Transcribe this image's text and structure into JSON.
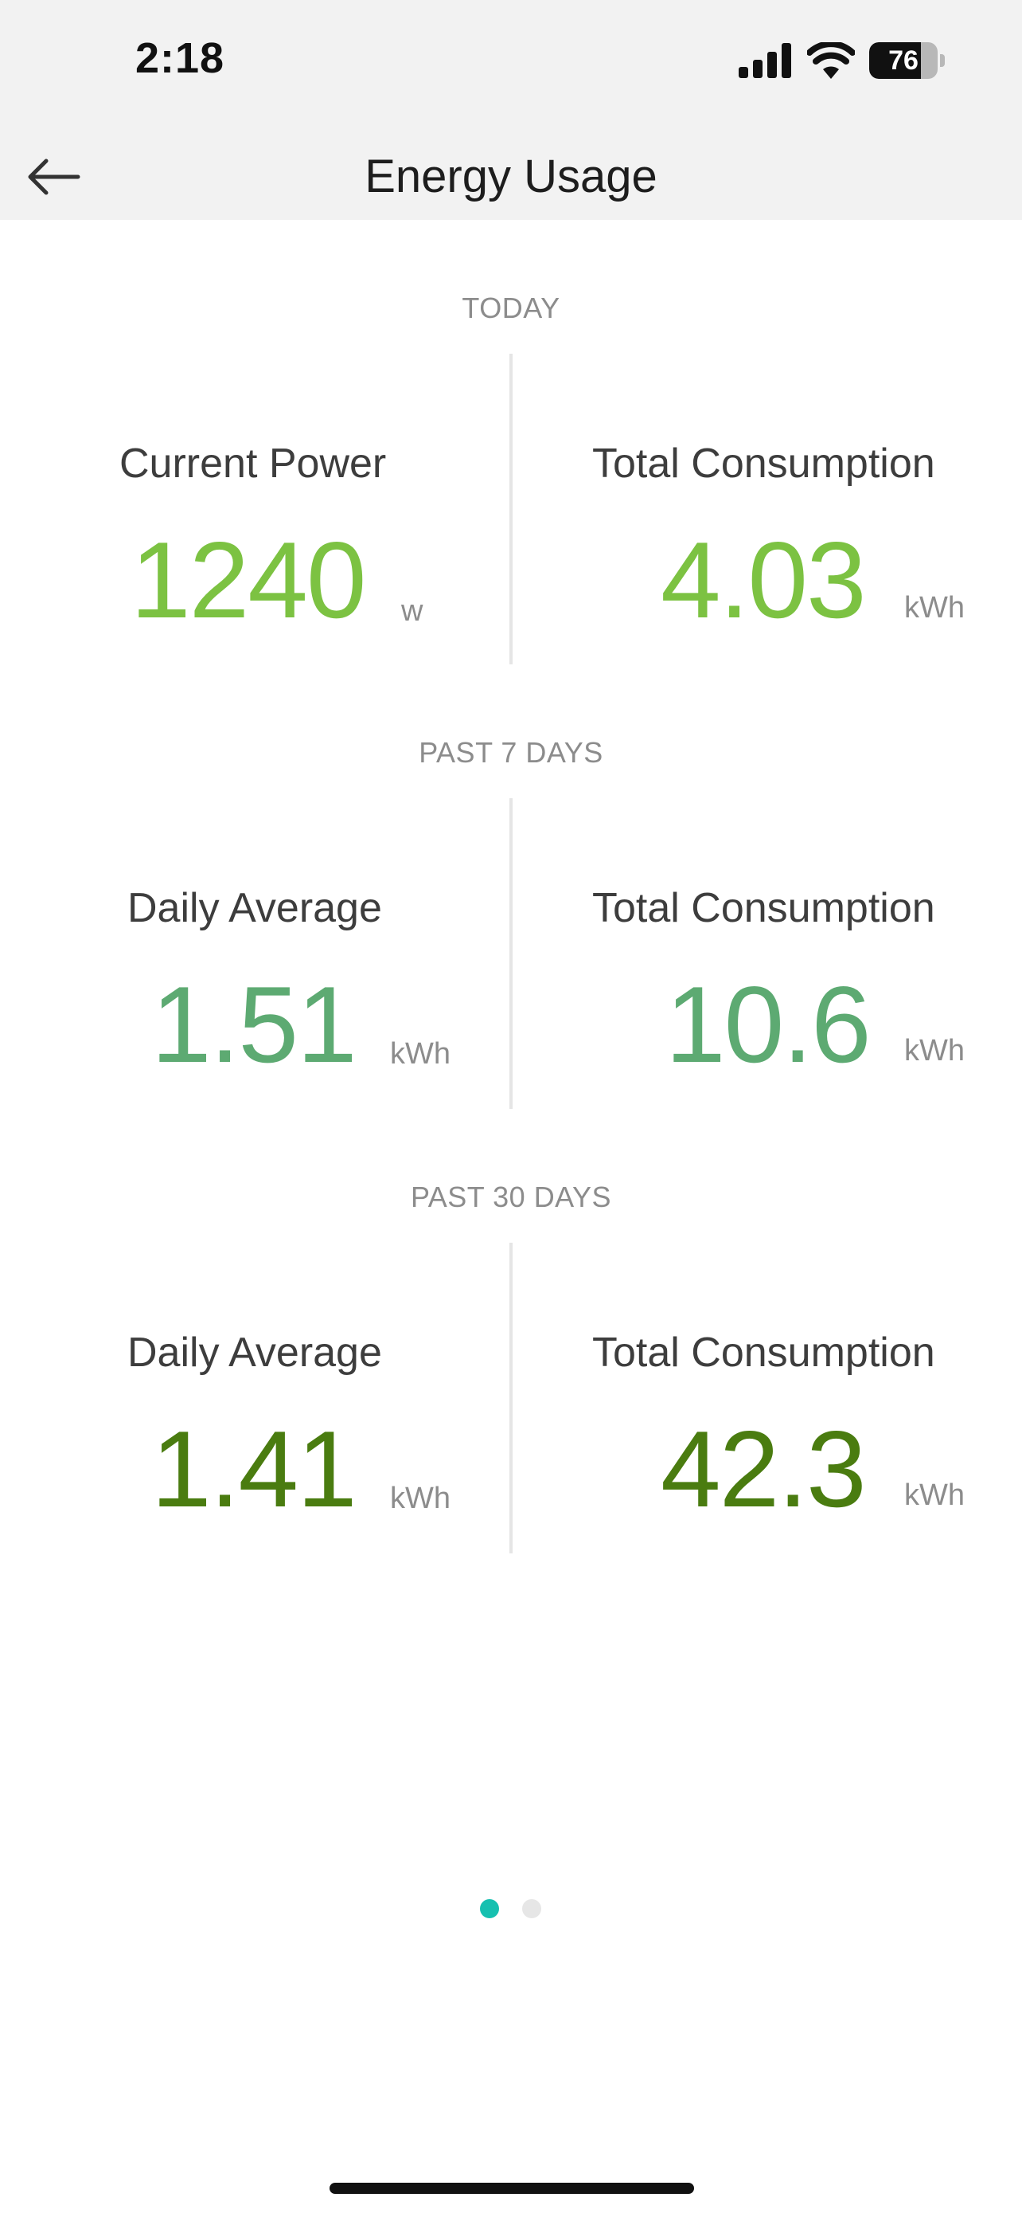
{
  "status_bar": {
    "time": "2:18",
    "battery_level": "76",
    "battery_fraction": 0.76
  },
  "nav": {
    "title": "Energy Usage",
    "back_icon": "arrow-left-icon"
  },
  "sections": [
    {
      "label": "TODAY",
      "left": {
        "label": "Current Power",
        "value": "1240",
        "unit": "w"
      },
      "right": {
        "label": "Total Consumption",
        "value": "4.03",
        "unit": "kWh"
      },
      "color": "#7cc242"
    },
    {
      "label": "PAST 7 DAYS",
      "left": {
        "label": "Daily Average",
        "value": "1.51",
        "unit": "kWh"
      },
      "right": {
        "label": "Total Consumption",
        "value": "10.6",
        "unit": "kWh"
      },
      "color": "#5daa72"
    },
    {
      "label": "PAST 30 DAYS",
      "left": {
        "label": "Daily Average",
        "value": "1.41",
        "unit": "kWh"
      },
      "right": {
        "label": "Total Consumption",
        "value": "42.3",
        "unit": "kWh"
      },
      "color": "#4a7c10"
    }
  ],
  "pager": {
    "total_pages": 2,
    "current_page": 1,
    "active_color": "#16c0b0",
    "inactive_color": "#e6e6e6"
  }
}
